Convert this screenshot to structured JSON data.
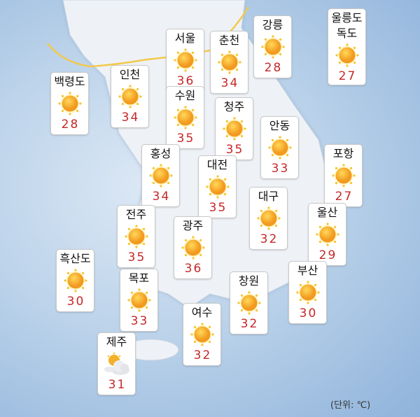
{
  "colors": {
    "temp": "#c62828",
    "sun": "#f5a623",
    "border_line": "#f2c94c"
  },
  "unit_label": "(단위: ℃)",
  "stations": [
    {
      "name": "백령도",
      "temp": "28",
      "icon": "sun-icon"
    },
    {
      "name": "인천",
      "temp": "34",
      "icon": "sun-icon"
    },
    {
      "name": "서울",
      "temp": "36",
      "icon": "sun-icon"
    },
    {
      "name": "춘천",
      "temp": "34",
      "icon": "sun-icon"
    },
    {
      "name": "강릉",
      "temp": "28",
      "icon": "sun-icon"
    },
    {
      "name": "울릉도\n독도",
      "temp": "27",
      "icon": "sun-icon"
    },
    {
      "name": "수원",
      "temp": "35",
      "icon": "sun-icon"
    },
    {
      "name": "청주",
      "temp": "35",
      "icon": "sun-icon"
    },
    {
      "name": "안동",
      "temp": "33",
      "icon": "sun-icon"
    },
    {
      "name": "포항",
      "temp": "27",
      "icon": "sun-icon"
    },
    {
      "name": "홍성",
      "temp": "34",
      "icon": "sun-icon"
    },
    {
      "name": "대전",
      "temp": "35",
      "icon": "sun-icon"
    },
    {
      "name": "대구",
      "temp": "32",
      "icon": "sun-icon"
    },
    {
      "name": "울산",
      "temp": "29",
      "icon": "sun-icon"
    },
    {
      "name": "전주",
      "temp": "35",
      "icon": "sun-icon"
    },
    {
      "name": "광주",
      "temp": "36",
      "icon": "sun-icon"
    },
    {
      "name": "흑산도",
      "temp": "30",
      "icon": "sun-icon"
    },
    {
      "name": "목포",
      "temp": "33",
      "icon": "sun-icon"
    },
    {
      "name": "창원",
      "temp": "32",
      "icon": "sun-icon"
    },
    {
      "name": "부산",
      "temp": "30",
      "icon": "sun-icon"
    },
    {
      "name": "여수",
      "temp": "32",
      "icon": "sun-icon"
    },
    {
      "name": "제주",
      "temp": "31",
      "icon": "partly-cloudy-icon"
    }
  ]
}
